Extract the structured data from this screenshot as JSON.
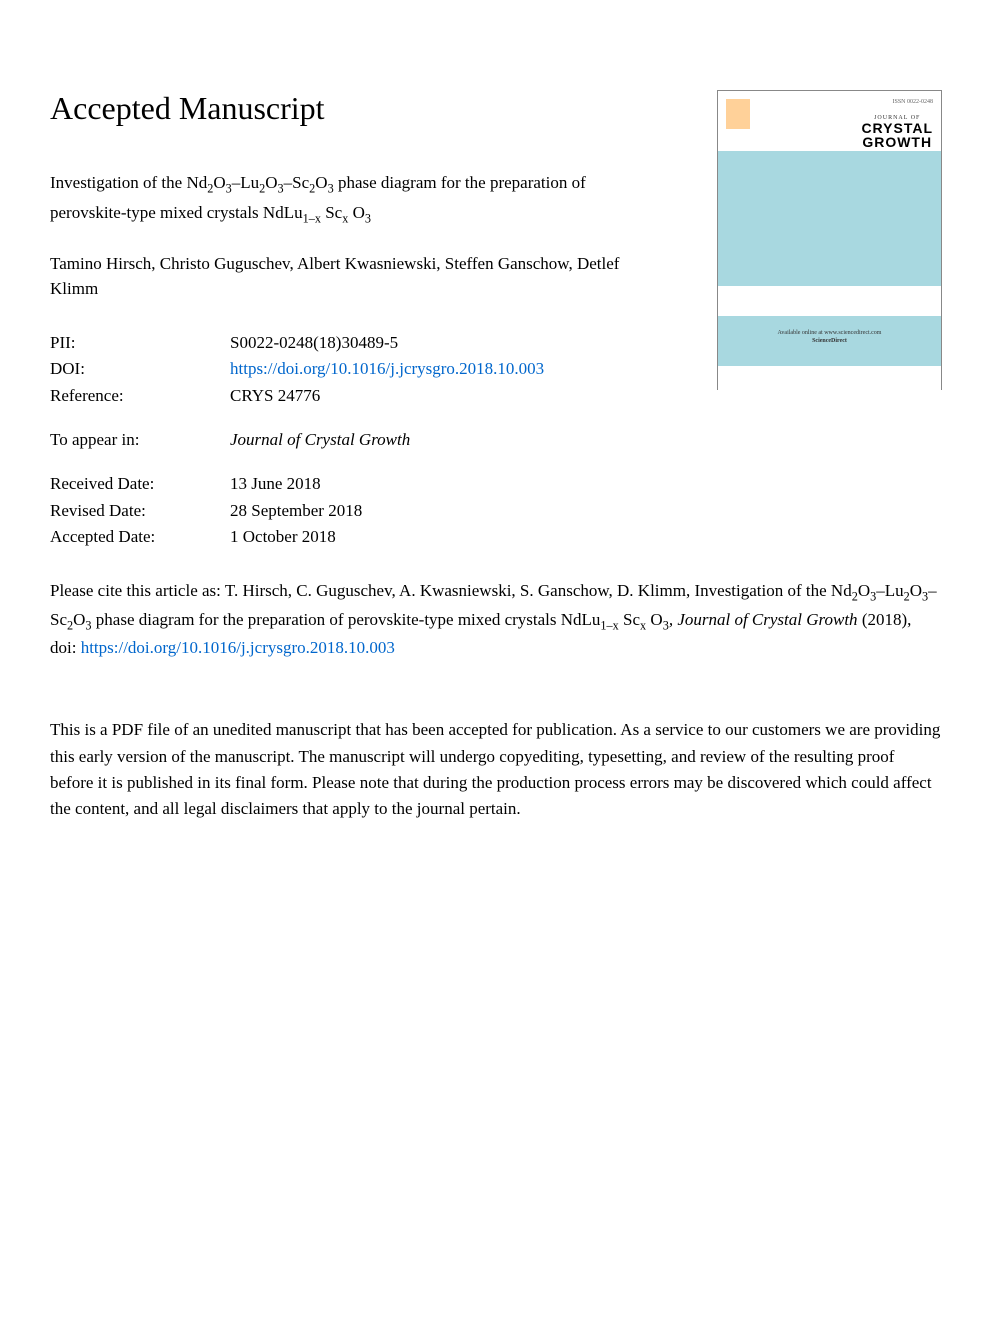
{
  "heading": "Accepted Manuscript",
  "title": {
    "prefix": "Investigation of the Nd",
    "s1a": "2",
    "s1b": "O",
    "s1c": "3",
    "mid1": "–Lu",
    "s2a": "2",
    "s2b": "O",
    "s2c": "3",
    "mid2": "–Sc",
    "s3a": "2",
    "s3b": "O",
    "s3c": "3",
    "mid3": " phase diagram for the preparation of perovskite-type mixed crystals NdLu",
    "s4a": "1–x",
    "s4b": " Sc",
    "s4c": "x",
    "s4d": " O",
    "s4e": "3"
  },
  "authors": "Tamino Hirsch, Christo Guguschev, Albert Kwasniewski, Steffen Ganschow, Detlef Klimm",
  "meta": {
    "pii_label": "PII:",
    "pii_value": "S0022-0248(18)30489-5",
    "doi_label": "DOI:",
    "doi_value": "https://doi.org/10.1016/j.jcrysgro.2018.10.003",
    "ref_label": "Reference:",
    "ref_value": "CRYS 24776",
    "appear_label": "To appear in:",
    "appear_value": "Journal of Crystal Growth",
    "received_label": "Received Date:",
    "received_value": "13 June 2018",
    "revised_label": "Revised Date:",
    "revised_value": "28 September 2018",
    "accepted_label": "Accepted Date:",
    "accepted_value": "1 October 2018"
  },
  "citation": {
    "prefix": "Please cite this article as: T. Hirsch, C. Guguschev, A. Kwasniewski, S. Ganschow, D. Klimm, Investigation of the Nd",
    "s1a": "2",
    "s1b": "O",
    "s1c": "3",
    "mid1": "–Lu",
    "s2a": "2",
    "s2b": "O",
    "s2c": "3",
    "mid2": "–Sc",
    "s3a": "2",
    "s3b": "O",
    "s3c": "3",
    "mid3": " phase diagram for the preparation of perovskite-type mixed crystals NdLu",
    "s4a": "1–x",
    "s4b": " Sc",
    "s4c": "x",
    "s4d": " O",
    "s4e": "3",
    "journal": ", Journal of Crystal Growth",
    "year": " (2018), doi: ",
    "doi": "https://doi.org/10.1016/j.jcrysgro.2018.10.003"
  },
  "disclaimer": "This is a PDF file of an unedited manuscript that has been accepted for publication. As a service to our customers we are providing this early version of the manuscript. The manuscript will undergo copyediting, typesetting, and review of the resulting proof before it is published in its final form. Please note that during the production process errors may be discovered which could affect the content, and all legal disclaimers that apply to the journal pertain.",
  "cover": {
    "issn": "ISSN 0022-0248",
    "journal_of": "JOURNAL OF",
    "crystal": "CRYSTAL",
    "growth": "GROWTH",
    "sd1": "Available online at www.sciencedirect.com",
    "sd2": "ScienceDirect",
    "band_color": "#a8d8e0",
    "border_color": "#888888"
  },
  "colors": {
    "link": "#0066cc",
    "text": "#000000",
    "background": "#ffffff"
  }
}
